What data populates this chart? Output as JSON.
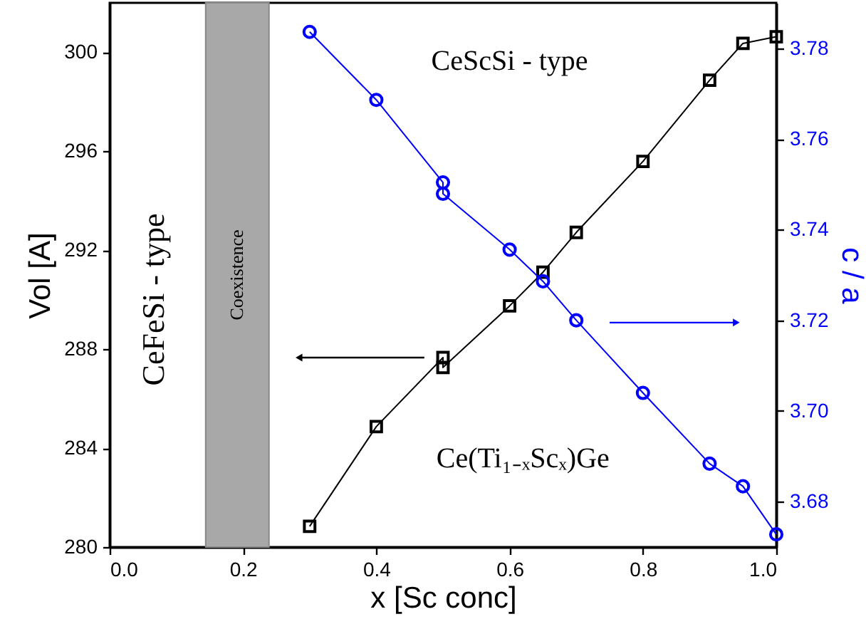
{
  "chart_data": {
    "type": "line",
    "xlabel": "x [Sc conc]",
    "ylabel": "Vol [A]",
    "y2label": "c / a",
    "xlim": [
      0,
      1
    ],
    "xticks": [
      {
        "value": 0,
        "label": "0.0"
      },
      0.2,
      0.4,
      0.6,
      0.8,
      {
        "value": 1,
        "label": "1.0"
      }
    ],
    "ylim": [
      280,
      302
    ],
    "yticks": [
      280,
      284,
      288,
      292,
      296,
      300
    ],
    "y2lim": [
      3.67,
      3.79
    ],
    "y2ticks": [
      3.68,
      {
        "value": 3.7,
        "label": "3.70"
      },
      3.72,
      3.74,
      3.76,
      3.78
    ],
    "series": [
      {
        "color": "#000000",
        "marker": "square",
        "x": [
          0.3,
          0.4,
          0.5,
          0.5,
          0.6,
          0.65,
          0.7,
          0.8,
          0.9,
          0.95,
          1.0
        ],
        "values": [
          280.84,
          284.87,
          287.66,
          287.26,
          289.75,
          291.11,
          292.72,
          295.59,
          298.87,
          300.36,
          300.63
        ]
      },
      {
        "color": "#0000ff",
        "marker": "circle",
        "axis": "y2",
        "x": [
          0.3,
          0.4,
          0.5,
          0.5,
          0.6,
          0.65,
          0.7,
          0.8,
          0.9,
          0.95,
          1.0
        ],
        "values": [
          3.7836,
          3.7686,
          3.7504,
          3.7479,
          3.7356,
          3.7286,
          3.72,
          3.704,
          3.6884,
          3.6834,
          3.6728
        ]
      }
    ],
    "bands": [
      {
        "axis": "x",
        "from": 0.144,
        "to": 0.239,
        "label": "Coexistence",
        "color": "#a8a8a8"
      }
    ],
    "annotations": [
      "CeFeSi - type",
      "CeScSi - type",
      "Ce(Ti₁₋ₓScₓ)Ge"
    ],
    "grid": false
  }
}
